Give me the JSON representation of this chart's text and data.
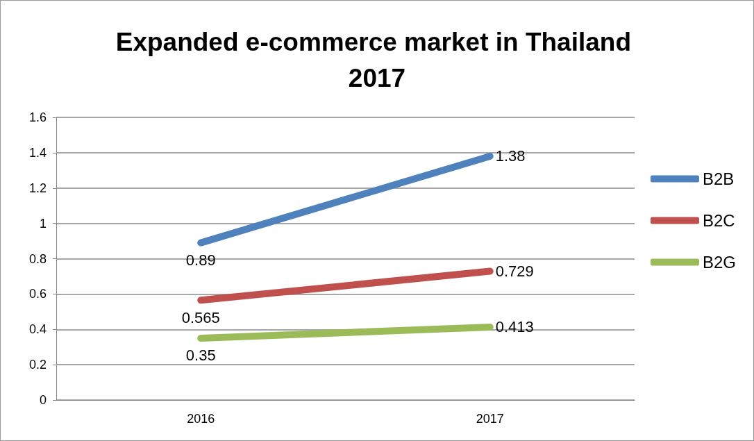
{
  "chart_data": {
    "type": "line",
    "title": "Expanded e-commerce market in Thailand 2017",
    "categories": [
      "2016",
      "2017"
    ],
    "series": [
      {
        "name": "B2B",
        "color": "#4f81bd",
        "values": [
          0.89,
          1.38
        ]
      },
      {
        "name": "B2C",
        "color": "#c0504d",
        "values": [
          0.565,
          0.729
        ]
      },
      {
        "name": "B2G",
        "color": "#9bbb59",
        "values": [
          0.35,
          0.413
        ]
      }
    ],
    "ylim": [
      0,
      1.6
    ],
    "yticks": [
      0,
      0.2,
      0.4,
      0.6,
      0.8,
      1,
      1.2,
      1.4,
      1.6
    ],
    "grid": "y",
    "legend": "right",
    "marker": "none",
    "line_style": "solid",
    "data_labels": true
  }
}
